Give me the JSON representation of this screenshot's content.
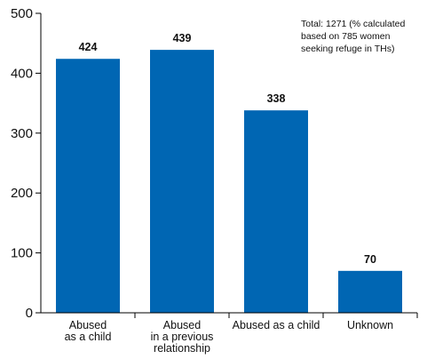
{
  "chart_data": {
    "type": "bar",
    "categories": [
      "Abused\nas a child",
      "Abused\nin a previous\nrelationship",
      "Abused as a child",
      "Unknown"
    ],
    "values": [
      424,
      439,
      338,
      70
    ],
    "data_labels": [
      "424",
      "439",
      "338",
      "70"
    ],
    "ylim": [
      0,
      500
    ],
    "yticks": [
      0,
      100,
      200,
      300,
      400,
      500
    ],
    "title": "",
    "xlabel": "",
    "ylabel": "",
    "grid": false,
    "legend": "none",
    "bar_color": "#0066b3",
    "annotation": "Total:  1271 (% calculated\nbased on 785 women\nseeking refuge in THs)"
  }
}
